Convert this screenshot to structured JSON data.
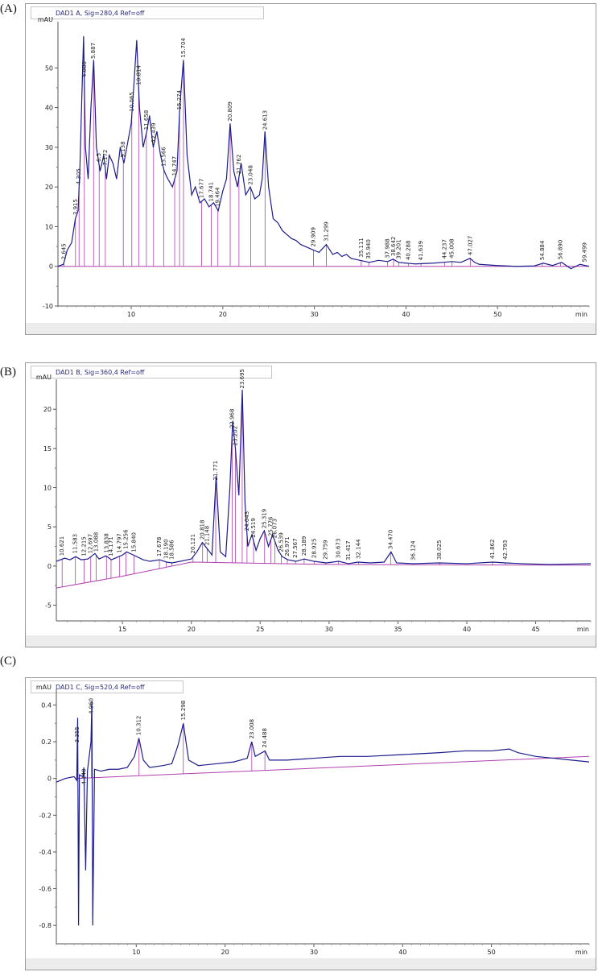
{
  "chart_data": [
    {
      "panel": "(A)",
      "type": "line",
      "title": "DAD1 A, Sig=280,4 Ref=off",
      "ylabel": "mAU",
      "xlabel": "min",
      "xlim": [
        2,
        60
      ],
      "ylim": [
        -10,
        60
      ],
      "xticks": [
        10,
        20,
        30,
        40,
        50
      ],
      "yticks": [
        -10,
        0,
        10,
        20,
        30,
        40,
        50
      ],
      "trace": [
        [
          2,
          0
        ],
        [
          2.6,
          0.5
        ],
        [
          3,
          4
        ],
        [
          3.5,
          6
        ],
        [
          3.9,
          12
        ],
        [
          4.2,
          14
        ],
        [
          4.4,
          25
        ],
        [
          4.6,
          42
        ],
        [
          4.8,
          58
        ],
        [
          5.0,
          30
        ],
        [
          5.3,
          22
        ],
        [
          5.6,
          40
        ],
        [
          5.9,
          52
        ],
        [
          6.2,
          30
        ],
        [
          6.6,
          24
        ],
        [
          7,
          28
        ],
        [
          7.3,
          22
        ],
        [
          7.6,
          28
        ],
        [
          8,
          26
        ],
        [
          8.4,
          22
        ],
        [
          8.8,
          30
        ],
        [
          9.2,
          26
        ],
        [
          9.6,
          31
        ],
        [
          10,
          36
        ],
        [
          10.3,
          46
        ],
        [
          10.6,
          57
        ],
        [
          10.9,
          40
        ],
        [
          11.3,
          30
        ],
        [
          11.7,
          34
        ],
        [
          12,
          38
        ],
        [
          12.4,
          30
        ],
        [
          12.8,
          34
        ],
        [
          13.2,
          28
        ],
        [
          13.6,
          24
        ],
        [
          14,
          22
        ],
        [
          14.5,
          20
        ],
        [
          15,
          24
        ],
        [
          15.3,
          40
        ],
        [
          15.7,
          52
        ],
        [
          16.1,
          28
        ],
        [
          16.6,
          18
        ],
        [
          17,
          20
        ],
        [
          17.5,
          16
        ],
        [
          18,
          17
        ],
        [
          18.5,
          15
        ],
        [
          19,
          16
        ],
        [
          19.5,
          14
        ],
        [
          20,
          19
        ],
        [
          20.4,
          22
        ],
        [
          20.8,
          36
        ],
        [
          21.2,
          24
        ],
        [
          21.6,
          20
        ],
        [
          22,
          26
        ],
        [
          22.5,
          18
        ],
        [
          23,
          20
        ],
        [
          23.5,
          17
        ],
        [
          24,
          18
        ],
        [
          24.3,
          22
        ],
        [
          24.6,
          34
        ],
        [
          25,
          20
        ],
        [
          25.5,
          12
        ],
        [
          26,
          11
        ],
        [
          26.5,
          9
        ],
        [
          27,
          8
        ],
        [
          27.5,
          7
        ],
        [
          28,
          6.5
        ],
        [
          28.5,
          5.5
        ],
        [
          29,
          5
        ],
        [
          29.5,
          4.5
        ],
        [
          30,
          4
        ],
        [
          30.5,
          3.5
        ],
        [
          31.3,
          5.5
        ],
        [
          32,
          3
        ],
        [
          32.5,
          3.5
        ],
        [
          33,
          2.5
        ],
        [
          33.5,
          3
        ],
        [
          34,
          2
        ],
        [
          35,
          1.5
        ],
        [
          36,
          1
        ],
        [
          37,
          1.5
        ],
        [
          38,
          1.2
        ],
        [
          38.6,
          1.8
        ],
        [
          39.2,
          1
        ],
        [
          40,
          0.8
        ],
        [
          41,
          0.6
        ],
        [
          42,
          0.7
        ],
        [
          43,
          0.8
        ],
        [
          44,
          1
        ],
        [
          45,
          1.2
        ],
        [
          46,
          1
        ],
        [
          47,
          2
        ],
        [
          47.5,
          1
        ],
        [
          48,
          0.5
        ],
        [
          50,
          0.2
        ],
        [
          52,
          0
        ],
        [
          54,
          0.1
        ],
        [
          55,
          0.8
        ],
        [
          56,
          0.2
        ],
        [
          57,
          1
        ],
        [
          58,
          -0.6
        ],
        [
          59,
          0.5
        ],
        [
          60,
          0
        ]
      ],
      "baseline": [
        [
          2,
          0
        ],
        [
          60,
          0
        ]
      ],
      "peak_labels": [
        {
          "x": 2.645,
          "label": "2.645"
        },
        {
          "x": 3.915,
          "label": "3.915"
        },
        {
          "x": 4.305,
          "label": "4.305"
        },
        {
          "x": 4.88,
          "label": "4.880"
        },
        {
          "x": 5.887,
          "label": "5.887"
        },
        {
          "x": 6.5,
          "label": "6.5"
        },
        {
          "x": 7.172,
          "label": "7.172"
        },
        {
          "x": 9.138,
          "label": "9.138"
        },
        {
          "x": 10.065,
          "label": "10.065"
        },
        {
          "x": 10.814,
          "label": "10.814"
        },
        {
          "x": 11.658,
          "label": "11.658"
        },
        {
          "x": 12.439,
          "label": "12.439"
        },
        {
          "x": 13.566,
          "label": "13.566"
        },
        {
          "x": 14.747,
          "label": "14.747"
        },
        {
          "x": 15.274,
          "label": "15.274"
        },
        {
          "x": 15.704,
          "label": "15.704"
        },
        {
          "x": 17.677,
          "label": "17.677"
        },
        {
          "x": 18.741,
          "label": "18.741"
        },
        {
          "x": 19.464,
          "label": "19.464"
        },
        {
          "x": 20.809,
          "label": "20.809"
        },
        {
          "x": 21.762,
          "label": "21.762"
        },
        {
          "x": 23.048,
          "label": "23.048"
        },
        {
          "x": 24.613,
          "label": "24.613"
        },
        {
          "x": 29.909,
          "label": "29.909"
        },
        {
          "x": 31.299,
          "label": "31.299"
        },
        {
          "x": 35.111,
          "label": "35.111"
        },
        {
          "x": 35.94,
          "label": "35.940"
        },
        {
          "x": 37.988,
          "label": "37.988"
        },
        {
          "x": 38.642,
          "label": "38.642"
        },
        {
          "x": 39.201,
          "label": "39.201"
        },
        {
          "x": 40.288,
          "label": "40.288"
        },
        {
          "x": 41.639,
          "label": "41.639"
        },
        {
          "x": 44.237,
          "label": "44.237"
        },
        {
          "x": 45.008,
          "label": "45.008"
        },
        {
          "x": 47.027,
          "label": "47.027"
        },
        {
          "x": 54.884,
          "label": "54.884"
        },
        {
          "x": 56.89,
          "label": "56.890"
        },
        {
          "x": 59.499,
          "label": "59.499"
        }
      ]
    },
    {
      "panel": "(B)",
      "type": "line",
      "title": "DAD1 B, Sig=360,4 Ref=off",
      "ylabel": "mAU",
      "xlabel": "min",
      "xlim": [
        10.2,
        49
      ],
      "ylim": [
        -7,
        23
      ],
      "xticks": [
        15,
        20,
        25,
        30,
        35,
        40,
        45
      ],
      "yticks": [
        -5,
        0,
        5,
        10,
        15,
        20
      ],
      "trace": [
        [
          10.2,
          0.6
        ],
        [
          10.8,
          1
        ],
        [
          11.2,
          0.8
        ],
        [
          11.6,
          1.2
        ],
        [
          12,
          0.8
        ],
        [
          12.5,
          0.9
        ],
        [
          13,
          1.6
        ],
        [
          13.3,
          0.9
        ],
        [
          13.8,
          1.3
        ],
        [
          14.2,
          0.8
        ],
        [
          14.6,
          1.1
        ],
        [
          15,
          1.4
        ],
        [
          15.3,
          1.8
        ],
        [
          15.8,
          1.4
        ],
        [
          16.5,
          0.8
        ],
        [
          17,
          0.6
        ],
        [
          17.7,
          0.8
        ],
        [
          18.2,
          0.5
        ],
        [
          18.6,
          0.4
        ],
        [
          19.2,
          0.6
        ],
        [
          20,
          0.9
        ],
        [
          20.4,
          1.8
        ],
        [
          20.8,
          3
        ],
        [
          21.2,
          2.1
        ],
        [
          21.5,
          1.4
        ],
        [
          21.8,
          11.5
        ],
        [
          22.1,
          1.8
        ],
        [
          22.5,
          1.2
        ],
        [
          22.8,
          10
        ],
        [
          23,
          18.5
        ],
        [
          23.2,
          15
        ],
        [
          23.45,
          9
        ],
        [
          23.7,
          22.5
        ],
        [
          23.9,
          8
        ],
        [
          24.1,
          2.5
        ],
        [
          24.4,
          4
        ],
        [
          24.7,
          2
        ],
        [
          25,
          3.5
        ],
        [
          25.3,
          4.5
        ],
        [
          25.6,
          2.5
        ],
        [
          25.9,
          4
        ],
        [
          26.3,
          2
        ],
        [
          26.6,
          1.2
        ],
        [
          27,
          0.8
        ],
        [
          27.6,
          0.6
        ],
        [
          28.2,
          0.9
        ],
        [
          28.9,
          0.6
        ],
        [
          29.8,
          0.4
        ],
        [
          30.7,
          0.6
        ],
        [
          31.4,
          0.3
        ],
        [
          32.1,
          0.5
        ],
        [
          33,
          0.4
        ],
        [
          34,
          0.5
        ],
        [
          34.5,
          1.8
        ],
        [
          34.9,
          0.4
        ],
        [
          36.1,
          0.3
        ],
        [
          38,
          0.4
        ],
        [
          40,
          0.3
        ],
        [
          41.9,
          0.5
        ],
        [
          42.8,
          0.4
        ],
        [
          44,
          0.3
        ],
        [
          46,
          0.2
        ],
        [
          49,
          0.3
        ]
      ],
      "baseline": [
        [
          10.2,
          -2.8
        ],
        [
          15,
          -1.3
        ],
        [
          20,
          0.5
        ],
        [
          30,
          0.2
        ],
        [
          49,
          0.1
        ]
      ],
      "peak_labels": [
        {
          "x": 10.621,
          "label": "10.621"
        },
        {
          "x": 11.583,
          "label": "11.583"
        },
        {
          "x": 12.215,
          "label": "12.215"
        },
        {
          "x": 12.697,
          "label": "12.697"
        },
        {
          "x": 13.088,
          "label": "13.088"
        },
        {
          "x": 13.838,
          "label": "13.838"
        },
        {
          "x": 14.171,
          "label": "14.171"
        },
        {
          "x": 14.797,
          "label": "14.797"
        },
        {
          "x": 15.256,
          "label": "15.256"
        },
        {
          "x": 15.84,
          "label": "15.840"
        },
        {
          "x": 17.678,
          "label": "17.678"
        },
        {
          "x": 18.19,
          "label": "18.190"
        },
        {
          "x": 18.586,
          "label": "18.586"
        },
        {
          "x": 20.121,
          "label": "20.121"
        },
        {
          "x": 20.818,
          "label": "20.818"
        },
        {
          "x": 21.148,
          "label": "21.148"
        },
        {
          "x": 21.771,
          "label": "21.771"
        },
        {
          "x": 22.968,
          "label": "22.968"
        },
        {
          "x": 23.202,
          "label": "23.202"
        },
        {
          "x": 23.695,
          "label": "23.695"
        },
        {
          "x": 24.043,
          "label": "24.043"
        },
        {
          "x": 24.519,
          "label": "24.519"
        },
        {
          "x": 25.319,
          "label": "25.319"
        },
        {
          "x": 25.776,
          "label": "25.776"
        },
        {
          "x": 26.073,
          "label": "26.073"
        },
        {
          "x": 26.539,
          "label": "26.539"
        },
        {
          "x": 26.971,
          "label": "26.971"
        },
        {
          "x": 27.567,
          "label": "27.567"
        },
        {
          "x": 28.189,
          "label": "28.189"
        },
        {
          "x": 28.925,
          "label": "28.925"
        },
        {
          "x": 29.759,
          "label": "29.759"
        },
        {
          "x": 30.673,
          "label": "30.673"
        },
        {
          "x": 31.417,
          "label": "31.417"
        },
        {
          "x": 32.144,
          "label": "32.144"
        },
        {
          "x": 34.47,
          "label": "34.470"
        },
        {
          "x": 36.124,
          "label": "36.124"
        },
        {
          "x": 38.025,
          "label": "38.025"
        },
        {
          "x": 41.862,
          "label": "41.862"
        },
        {
          "x": 42.793,
          "label": "42.793"
        }
      ]
    },
    {
      "panel": "(C)",
      "type": "line",
      "title": "DAD1 C, Sig=520,4 Ref=off",
      "ylabel": "mAU",
      "xlabel": "min",
      "xlim": [
        1,
        61
      ],
      "ylim": [
        -0.9,
        0.45
      ],
      "xticks": [
        10,
        20,
        30,
        40,
        50
      ],
      "yticks": [
        -0.8,
        -0.6,
        -0.4,
        -0.2,
        0,
        0.2,
        0.4
      ],
      "trace": [
        [
          1,
          -0.02
        ],
        [
          2,
          0
        ],
        [
          3,
          0.01
        ],
        [
          3.3,
          -0.01
        ],
        [
          3.4,
          0.33
        ],
        [
          3.5,
          -0.8
        ],
        [
          3.6,
          0.02
        ],
        [
          4,
          0.01
        ],
        [
          4.1,
          0.06
        ],
        [
          4.3,
          -0.5
        ],
        [
          4.5,
          0.04
        ],
        [
          4.9,
          0.2
        ],
        [
          5.0,
          0.42
        ],
        [
          5.1,
          -0.8
        ],
        [
          5.3,
          0.05
        ],
        [
          6,
          0.04
        ],
        [
          7,
          0.05
        ],
        [
          8,
          0.05
        ],
        [
          9,
          0.06
        ],
        [
          9.8,
          0.12
        ],
        [
          10.3,
          0.22
        ],
        [
          10.8,
          0.1
        ],
        [
          11.5,
          0.06
        ],
        [
          13,
          0.07
        ],
        [
          14,
          0.08
        ],
        [
          14.7,
          0.18
        ],
        [
          15.3,
          0.3
        ],
        [
          15.9,
          0.1
        ],
        [
          17,
          0.07
        ],
        [
          19,
          0.08
        ],
        [
          21,
          0.09
        ],
        [
          22.5,
          0.11
        ],
        [
          23,
          0.2
        ],
        [
          23.4,
          0.12
        ],
        [
          24.5,
          0.15
        ],
        [
          25,
          0.1
        ],
        [
          27,
          0.1
        ],
        [
          30,
          0.11
        ],
        [
          33,
          0.12
        ],
        [
          36,
          0.12
        ],
        [
          40,
          0.13
        ],
        [
          44,
          0.14
        ],
        [
          47,
          0.15
        ],
        [
          50,
          0.15
        ],
        [
          52,
          0.16
        ],
        [
          53,
          0.14
        ],
        [
          55,
          0.12
        ],
        [
          57,
          0.11
        ],
        [
          59,
          0.1
        ],
        [
          61,
          0.09
        ]
      ],
      "baseline": [
        [
          3.3,
          0
        ],
        [
          61,
          0.12
        ]
      ],
      "peak_labels": [
        {
          "x": 3.355,
          "label": "3.355"
        },
        {
          "x": 4.14,
          "label": "4.140"
        },
        {
          "x": 4.96,
          "label": "4.960"
        },
        {
          "x": 10.312,
          "label": "10.312"
        },
        {
          "x": 15.298,
          "label": "15.298"
        },
        {
          "x": 23.008,
          "label": "23.008"
        },
        {
          "x": 24.488,
          "label": "24.488"
        }
      ]
    }
  ]
}
